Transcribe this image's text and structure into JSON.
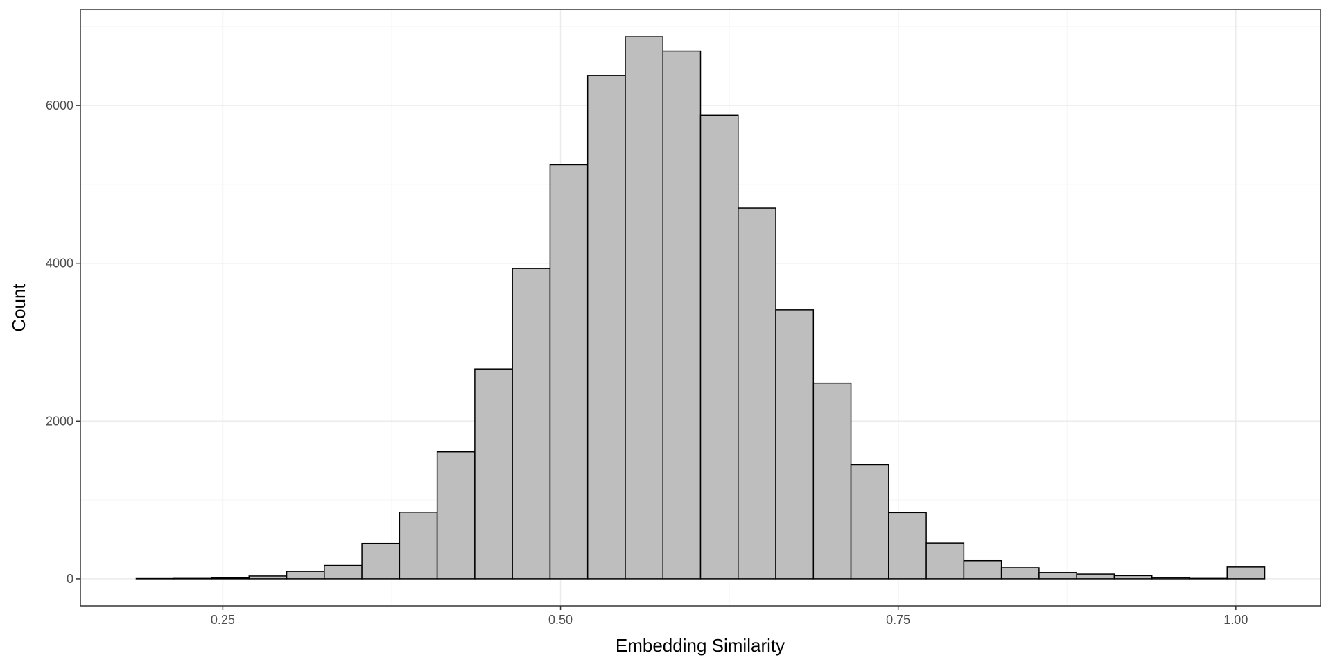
{
  "chart_data": {
    "type": "bar",
    "xlabel": "Embedding Similarity",
    "ylabel": "Count",
    "bin_width": 0.02785,
    "bins": [
      {
        "x0": 0.1859,
        "x1": 0.21375,
        "count": 3
      },
      {
        "x0": 0.21375,
        "x1": 0.2416,
        "count": 5
      },
      {
        "x0": 0.2416,
        "x1": 0.26945,
        "count": 12
      },
      {
        "x0": 0.26945,
        "x1": 0.2973,
        "count": 35
      },
      {
        "x0": 0.2973,
        "x1": 0.32515,
        "count": 95
      },
      {
        "x0": 0.32515,
        "x1": 0.353,
        "count": 170
      },
      {
        "x0": 0.353,
        "x1": 0.38085,
        "count": 450
      },
      {
        "x0": 0.38085,
        "x1": 0.4087,
        "count": 845
      },
      {
        "x0": 0.4087,
        "x1": 0.43655,
        "count": 1610
      },
      {
        "x0": 0.43655,
        "x1": 0.4644,
        "count": 2660
      },
      {
        "x0": 0.4644,
        "x1": 0.49225,
        "count": 3935
      },
      {
        "x0": 0.49225,
        "x1": 0.5201,
        "count": 5250
      },
      {
        "x0": 0.5201,
        "x1": 0.54795,
        "count": 6380
      },
      {
        "x0": 0.54795,
        "x1": 0.5758,
        "count": 6870
      },
      {
        "x0": 0.5758,
        "x1": 0.60365,
        "count": 6690
      },
      {
        "x0": 0.60365,
        "x1": 0.6315,
        "count": 5875
      },
      {
        "x0": 0.6315,
        "x1": 0.65935,
        "count": 4700
      },
      {
        "x0": 0.65935,
        "x1": 0.6872,
        "count": 3410
      },
      {
        "x0": 0.6872,
        "x1": 0.71505,
        "count": 2480
      },
      {
        "x0": 0.71505,
        "x1": 0.7429,
        "count": 1445
      },
      {
        "x0": 0.7429,
        "x1": 0.77075,
        "count": 840
      },
      {
        "x0": 0.77075,
        "x1": 0.7986,
        "count": 455
      },
      {
        "x0": 0.7986,
        "x1": 0.82645,
        "count": 230
      },
      {
        "x0": 0.82645,
        "x1": 0.8543,
        "count": 140
      },
      {
        "x0": 0.8543,
        "x1": 0.88215,
        "count": 80
      },
      {
        "x0": 0.88215,
        "x1": 0.91,
        "count": 60
      },
      {
        "x0": 0.91,
        "x1": 0.93785,
        "count": 40
      },
      {
        "x0": 0.93785,
        "x1": 0.9657,
        "count": 15
      },
      {
        "x0": 0.9657,
        "x1": 0.99355,
        "count": 5
      },
      {
        "x0": 0.99355,
        "x1": 1.0214,
        "count": 150
      }
    ],
    "xlim": [
      0.1446,
      1.0627
    ],
    "ylim": [
      -343.5,
      7213.5
    ],
    "x_ticks": [
      0.25,
      0.5,
      0.75,
      1.0
    ],
    "x_tick_labels": [
      "0.25",
      "0.50",
      "0.75",
      "1.00"
    ],
    "y_ticks": [
      0,
      2000,
      4000,
      6000
    ],
    "y_tick_labels": [
      "0",
      "2000",
      "4000",
      "6000"
    ],
    "grid": true,
    "legend": "none",
    "colors": {
      "bar_fill": "#bebebe",
      "bar_stroke": "#000000",
      "grid_major": "#ebebeb",
      "grid_minor": "#f5f5f5",
      "panel_border": "#333333",
      "tick_text": "#4d4d4d"
    }
  }
}
